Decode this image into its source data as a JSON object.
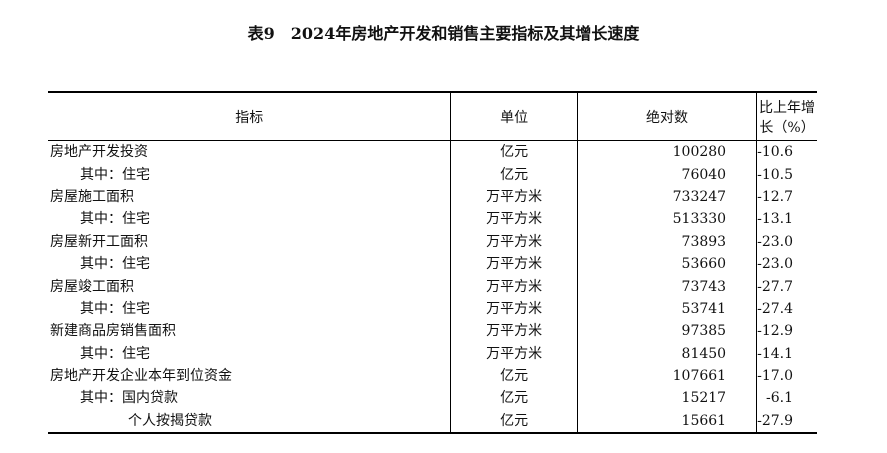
{
  "title": "表9　2024年房地产开发和销售主要指标及其增长速度",
  "headers": [
    "指标",
    "单位",
    "绝对数",
    "比上年增长（%）"
  ],
  "rows": [
    {
      "name": "房地产开发投资",
      "indent": 0,
      "unit": "亿元",
      "value": "100280",
      "growth": "-10.6"
    },
    {
      "name": "其中：住宅",
      "indent": 1,
      "unit": "亿元",
      "value": "76040",
      "growth": "-10.5"
    },
    {
      "name": "房屋施工面积",
      "indent": 0,
      "unit": "万平方米",
      "value": "733247",
      "growth": "-12.7"
    },
    {
      "name": "其中：住宅",
      "indent": 1,
      "unit": "万平方米",
      "value": "513330",
      "growth": "-13.1"
    },
    {
      "name": "房屋新开工面积",
      "indent": 0,
      "unit": "万平方米",
      "value": "73893",
      "growth": "-23.0"
    },
    {
      "name": "其中：住宅",
      "indent": 1,
      "unit": "万平方米",
      "value": "53660",
      "growth": "-23.0"
    },
    {
      "name": "房屋竣工面积",
      "indent": 0,
      "unit": "万平方米",
      "value": "73743",
      "growth": "-27.7"
    },
    {
      "name": "其中：住宅",
      "indent": 1,
      "unit": "万平方米",
      "value": "53741",
      "growth": "-27.4"
    },
    {
      "name": "新建商品房销售面积",
      "indent": 0,
      "unit": "万平方米",
      "value": "97385",
      "growth": "-12.9"
    },
    {
      "name": "其中：住宅",
      "indent": 1,
      "unit": "万平方米",
      "value": "81450",
      "growth": "-14.1"
    },
    {
      "name": "房地产开发企业本年到位资金",
      "indent": 0,
      "unit": "亿元",
      "value": "107661",
      "growth": "-17.0"
    },
    {
      "name": "其中：国内贷款",
      "indent": 1,
      "unit": "亿元",
      "value": "15217",
      "growth": "-6.1"
    },
    {
      "name": "个人按揭贷款",
      "indent": 2,
      "unit": "亿元",
      "value": "15661",
      "growth": "-27.9"
    }
  ]
}
